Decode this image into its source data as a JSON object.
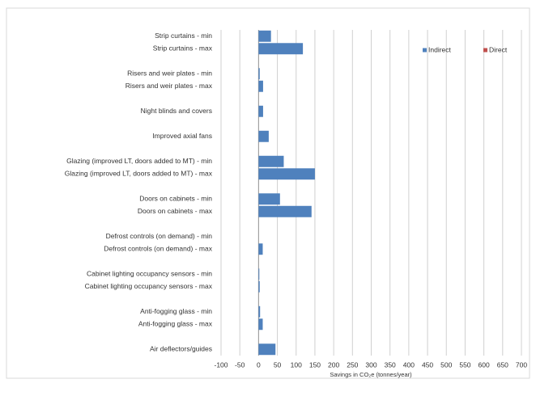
{
  "chart_data": {
    "type": "bar",
    "orientation": "horizontal",
    "x_label": "Savings in CO₂e (tonnes/year)",
    "categories": [
      "Strip curtains - min",
      "Strip curtains - max",
      null,
      "Risers and weir plates - min",
      "Risers and weir plates - max",
      null,
      "Night blinds and covers",
      null,
      "Improved axial fans",
      null,
      "Glazing (improved LT, doors added to MT) - min",
      "Glazing (improved LT, doors added to MT) - max",
      null,
      "Doors on cabinets - min",
      "Doors on cabinets - max",
      null,
      "Defrost controls (on demand) - min",
      "Defrost controls (on demand) - max",
      null,
      "Cabinet lighting occupancy sensors - min",
      "Cabinet lighting occupancy sensors - max",
      null,
      "Anti-fogging glass - min",
      "Anti-fogging glass - max",
      null,
      "Air deflectors/guides"
    ],
    "series": [
      {
        "name": "Indirect",
        "color": "#4f81bd",
        "values": [
          33,
          118,
          null,
          3,
          12,
          null,
          12,
          null,
          27,
          null,
          67,
          150,
          null,
          57,
          141,
          null,
          0,
          11,
          null,
          2,
          3,
          null,
          4,
          11,
          null,
          45
        ]
      },
      {
        "name": "Direct",
        "color": "#c0504d",
        "values": [
          0,
          0,
          null,
          0,
          0,
          null,
          0,
          null,
          0,
          null,
          0,
          0,
          null,
          0,
          0,
          null,
          0,
          0,
          null,
          0,
          0,
          null,
          0,
          0,
          null,
          0
        ]
      }
    ],
    "xlim": [
      -100,
      700
    ],
    "xticks": [
      -100,
      -50,
      0,
      50,
      100,
      150,
      200,
      250,
      300,
      350,
      400,
      450,
      500,
      550,
      600,
      650,
      700
    ],
    "grid": true,
    "legend": "top-right"
  }
}
